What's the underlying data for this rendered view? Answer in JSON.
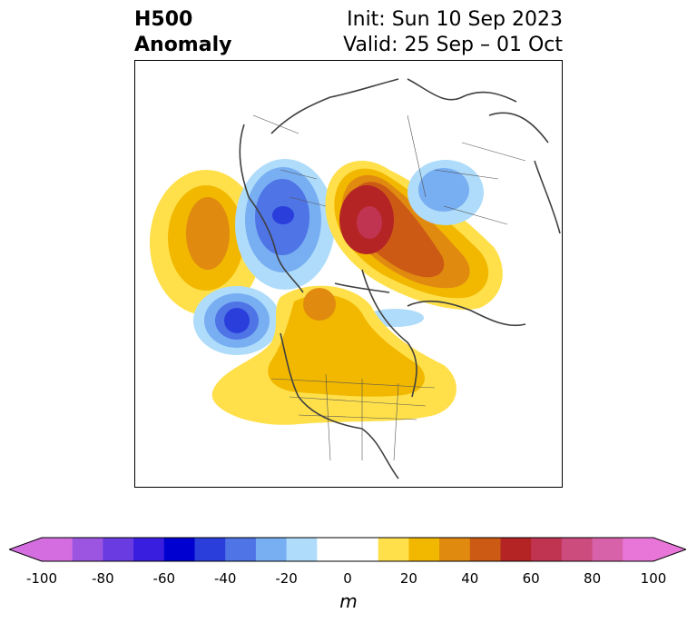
{
  "title": {
    "left_line1": "H500",
    "left_line2": "Anomaly",
    "right_line1": "Init: Sun 10 Sep 2023",
    "right_line2": "Valid: 25 Sep – 01 Oct"
  },
  "colorbar": {
    "unit": "m",
    "ticks": [
      "-100",
      "-80",
      "-60",
      "-40",
      "-20",
      "0",
      "20",
      "40",
      "60",
      "80",
      "100"
    ],
    "colors": [
      "#d46ee0",
      "#9c55e0",
      "#6a3be0",
      "#3a1ee0",
      "#0000d0",
      "#2a3edc",
      "#4e74e6",
      "#78aef2",
      "#aedcfa",
      "#ffffff",
      "#ffffff",
      "#ffe04a",
      "#f2b800",
      "#e08a10",
      "#cc5a14",
      "#b42424",
      "#c03452",
      "#cc4c7e",
      "#d862aa",
      "#e876d8"
    ]
  }
}
